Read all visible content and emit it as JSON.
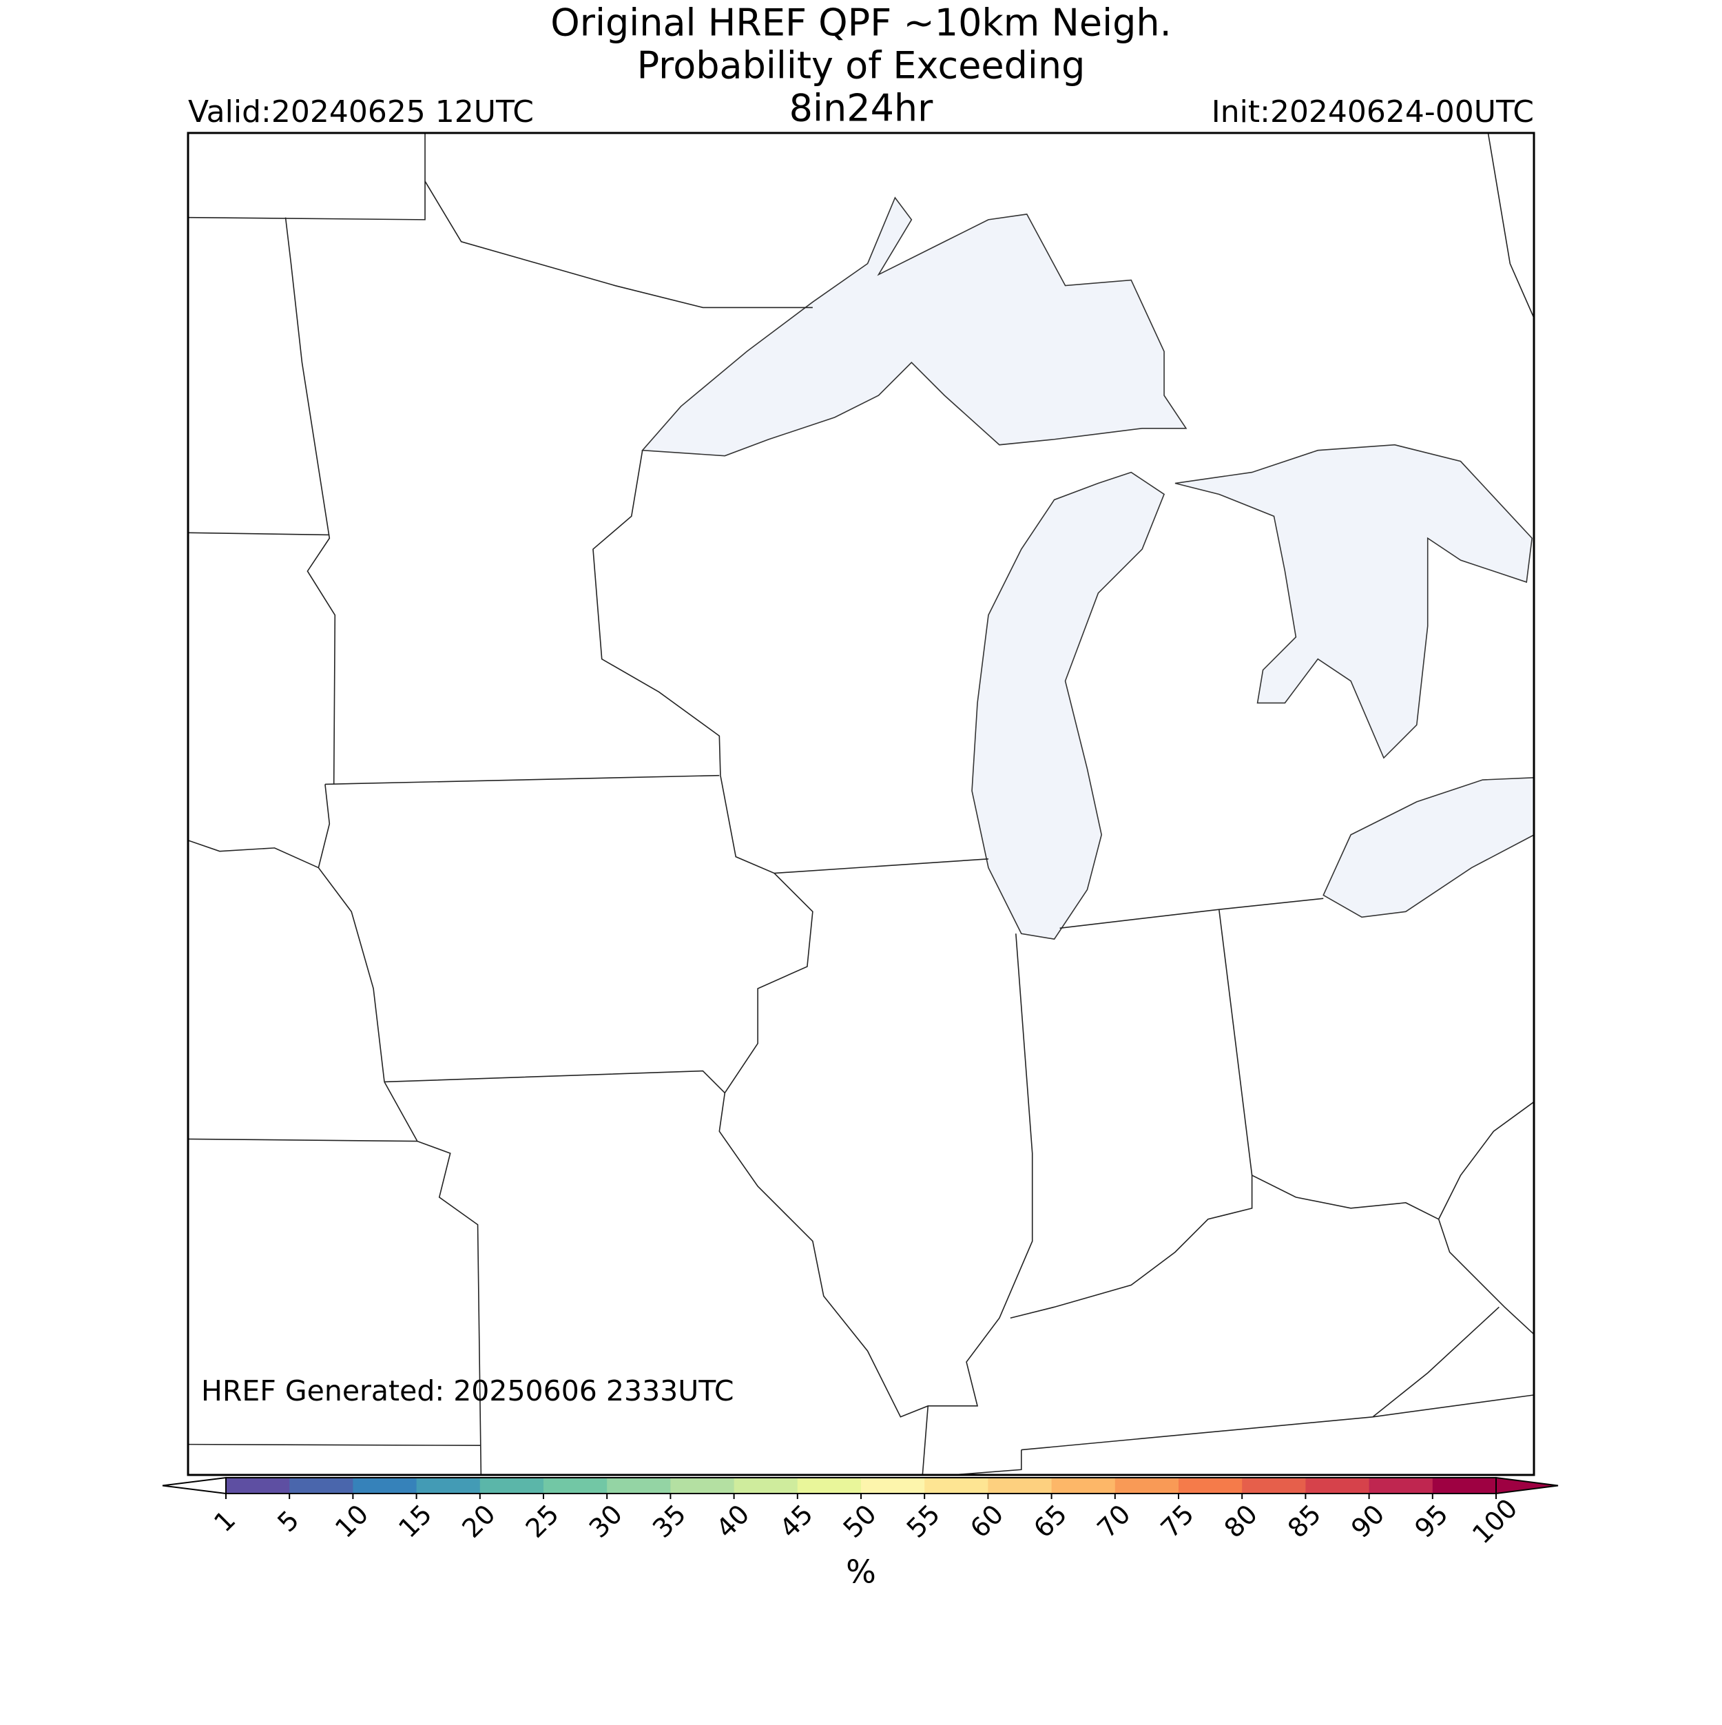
{
  "header": {
    "title": [
      "Original HREF QPF ~10km Neigh.",
      "Probability of Exceeding",
      "8in24hr"
    ],
    "valid": "Valid:20240625 12UTC",
    "init": "Init:20240624-00UTC"
  },
  "footer_note": "HREF Generated: 20250606 2333UTC",
  "colorbar": {
    "label": "%",
    "ticks": [
      1,
      5,
      10,
      15,
      20,
      25,
      30,
      35,
      40,
      45,
      50,
      55,
      60,
      65,
      70,
      75,
      80,
      85,
      90,
      95,
      100
    ],
    "colors": [
      "#5e4fa2",
      "#4a66ac",
      "#3682ba",
      "#439bb5",
      "#5bb6a9",
      "#72c7a5",
      "#94d4a4",
      "#b4e0a2",
      "#cfec9d",
      "#e9f69a",
      "#fdf5ac",
      "#fee593",
      "#fdd07f",
      "#fdb768",
      "#f99a56",
      "#f57b4a",
      "#e65f4b",
      "#d6424b",
      "#bf2650",
      "#9e0142"
    ],
    "under_color": "#ffffff",
    "over_color": "#9e0142"
  }
}
